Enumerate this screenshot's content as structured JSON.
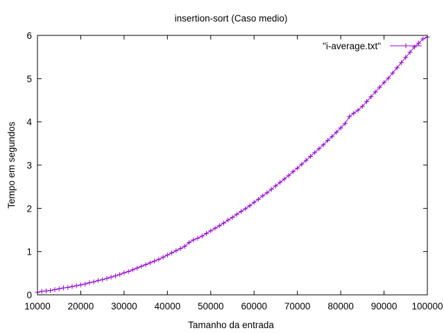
{
  "chart_data": {
    "type": "line",
    "title": "insertion-sort (Caso medio)",
    "xlabel": "Tamanho da entrada",
    "ylabel": "Tempo em segundos",
    "xlim": [
      10000,
      100000
    ],
    "ylim": [
      0,
      6
    ],
    "xticks": [
      10000,
      20000,
      30000,
      40000,
      50000,
      60000,
      70000,
      80000,
      90000,
      100000
    ],
    "yticks": [
      0,
      1,
      2,
      3,
      4,
      5,
      6
    ],
    "grid": false,
    "legend_position": "top-right",
    "series": [
      {
        "name": "\"i-average.txt\"",
        "color": "#9400d3",
        "marker": "plus",
        "x": [
          10000,
          11000,
          12000,
          13000,
          14000,
          15000,
          16000,
          17000,
          18000,
          19000,
          20000,
          21000,
          22000,
          23000,
          24000,
          25000,
          26000,
          27000,
          28000,
          29000,
          30000,
          31000,
          32000,
          33000,
          34000,
          35000,
          36000,
          37000,
          38000,
          39000,
          40000,
          41000,
          42000,
          43000,
          44000,
          45000,
          46000,
          47000,
          48000,
          49000,
          50000,
          51000,
          52000,
          53000,
          54000,
          55000,
          56000,
          57000,
          58000,
          59000,
          60000,
          61000,
          62000,
          63000,
          64000,
          65000,
          66000,
          67000,
          68000,
          69000,
          70000,
          71000,
          72000,
          73000,
          74000,
          75000,
          76000,
          77000,
          78000,
          79000,
          80000,
          81000,
          82000,
          83000,
          84000,
          85000,
          86000,
          87000,
          88000,
          89000,
          90000,
          91000,
          92000,
          93000,
          94000,
          95000,
          96000,
          97000,
          98000,
          99000,
          100000
        ],
        "y": [
          0.06,
          0.08,
          0.09,
          0.1,
          0.12,
          0.14,
          0.16,
          0.17,
          0.19,
          0.21,
          0.23,
          0.25,
          0.28,
          0.3,
          0.33,
          0.35,
          0.38,
          0.41,
          0.44,
          0.47,
          0.51,
          0.54,
          0.58,
          0.62,
          0.66,
          0.7,
          0.74,
          0.78,
          0.82,
          0.87,
          0.92,
          0.97,
          1.02,
          1.07,
          1.12,
          1.21,
          1.27,
          1.31,
          1.36,
          1.42,
          1.48,
          1.54,
          1.6,
          1.66,
          1.73,
          1.79,
          1.86,
          1.93,
          1.99,
          2.06,
          2.14,
          2.21,
          2.29,
          2.36,
          2.44,
          2.52,
          2.6,
          2.68,
          2.76,
          2.85,
          2.93,
          3.02,
          3.11,
          3.2,
          3.29,
          3.38,
          3.47,
          3.57,
          3.66,
          3.76,
          3.86,
          3.96,
          4.12,
          4.2,
          4.27,
          4.36,
          4.47,
          4.58,
          4.69,
          4.8,
          4.91,
          5.01,
          5.13,
          5.25,
          5.37,
          5.49,
          5.61,
          5.73,
          5.82,
          5.92,
          5.96
        ]
      }
    ]
  }
}
